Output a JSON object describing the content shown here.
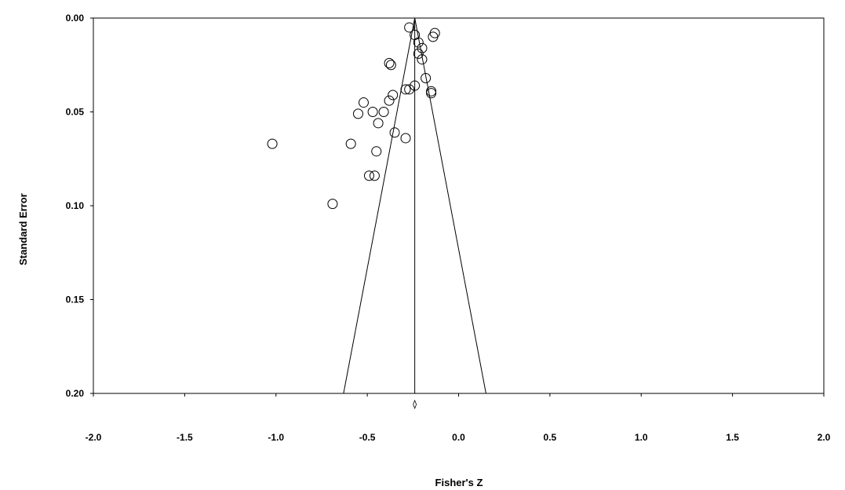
{
  "chart_data": {
    "type": "scatter",
    "title": "",
    "xlabel": "Fisher's Z",
    "ylabel": "Standard Error",
    "xlim": [
      -2.0,
      2.0
    ],
    "ylim": [
      0.0,
      0.2
    ],
    "y_inverted": true,
    "x_ticks": [
      "-2.0",
      "-1.5",
      "-1.0",
      "-0.5",
      "0.0",
      "0.5",
      "1.0",
      "1.5",
      "2.0"
    ],
    "y_ticks": [
      "0.00",
      "0.05",
      "0.10",
      "0.15",
      "0.20"
    ],
    "grid": false,
    "legend": "none",
    "summary_effect": -0.24,
    "funnel_limits": [
      -0.63,
      0.15
    ],
    "points": [
      {
        "x": -0.27,
        "y": 0.005
      },
      {
        "x": -0.24,
        "y": 0.009
      },
      {
        "x": -0.13,
        "y": 0.008
      },
      {
        "x": -0.14,
        "y": 0.01
      },
      {
        "x": -0.22,
        "y": 0.013
      },
      {
        "x": -0.2,
        "y": 0.016
      },
      {
        "x": -0.22,
        "y": 0.019
      },
      {
        "x": -0.2,
        "y": 0.022
      },
      {
        "x": -0.38,
        "y": 0.024
      },
      {
        "x": -0.37,
        "y": 0.025
      },
      {
        "x": -0.18,
        "y": 0.032
      },
      {
        "x": -0.24,
        "y": 0.036
      },
      {
        "x": -0.29,
        "y": 0.038
      },
      {
        "x": -0.27,
        "y": 0.038
      },
      {
        "x": -0.15,
        "y": 0.039
      },
      {
        "x": -0.15,
        "y": 0.04
      },
      {
        "x": -0.36,
        "y": 0.041
      },
      {
        "x": -0.38,
        "y": 0.044
      },
      {
        "x": -0.52,
        "y": 0.045
      },
      {
        "x": -0.41,
        "y": 0.05
      },
      {
        "x": -0.47,
        "y": 0.05
      },
      {
        "x": -0.55,
        "y": 0.051
      },
      {
        "x": -0.44,
        "y": 0.056
      },
      {
        "x": -0.35,
        "y": 0.061
      },
      {
        "x": -0.29,
        "y": 0.064
      },
      {
        "x": -1.02,
        "y": 0.067
      },
      {
        "x": -0.59,
        "y": 0.067
      },
      {
        "x": -0.45,
        "y": 0.071
      },
      {
        "x": -0.49,
        "y": 0.084
      },
      {
        "x": -0.46,
        "y": 0.084
      },
      {
        "x": -0.69,
        "y": 0.099
      }
    ]
  },
  "colors": {
    "stroke": "#000000",
    "background": "#ffffff"
  }
}
